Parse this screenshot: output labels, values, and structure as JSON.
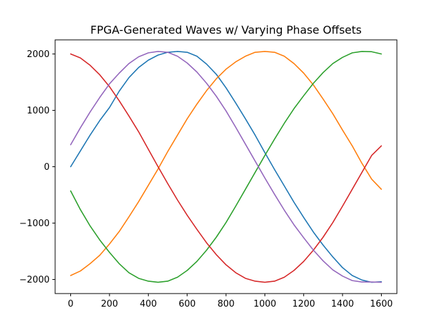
{
  "chart_data": {
    "type": "line",
    "title": "FPGA-Generated Waves w/ Varying Phase Offsets",
    "xlabel": "",
    "ylabel": "",
    "xlim": [
      -80,
      1680
    ],
    "ylim": [
      -2250,
      2250
    ],
    "xticks": [
      0,
      200,
      400,
      600,
      800,
      1000,
      1200,
      1400,
      1600
    ],
    "yticks": [
      -2000,
      -1000,
      0,
      1000,
      2000
    ],
    "xtick_labels": [
      "0",
      "200",
      "400",
      "600",
      "800",
      "1000",
      "1200",
      "1400",
      "1600"
    ],
    "ytick_labels": [
      "−2000",
      "−1000",
      "0",
      "1000",
      "2000"
    ],
    "grid": false,
    "legend": "none",
    "series": [
      {
        "color": "#1f77b4",
        "x": [
          0,
          50,
          100,
          150,
          200,
          250,
          300,
          350,
          400,
          450,
          500,
          550,
          600,
          650,
          700,
          750,
          800,
          850,
          900,
          950,
          1000,
          1050,
          1100,
          1150,
          1200,
          1250,
          1300,
          1350,
          1400,
          1450,
          1500,
          1550,
          1600
        ],
        "values": [
          0,
          280,
          560,
          820,
          1050,
          1340,
          1580,
          1760,
          1890,
          1980,
          2030,
          2045,
          2030,
          1960,
          1820,
          1640,
          1400,
          1130,
          850,
          560,
          250,
          -50,
          -340,
          -630,
          -900,
          -1160,
          -1390,
          -1600,
          -1790,
          -1930,
          -2010,
          -2050,
          -2040
        ]
      },
      {
        "color": "#ff7f0e",
        "x": [
          0,
          50,
          100,
          150,
          200,
          250,
          300,
          350,
          400,
          450,
          500,
          550,
          600,
          650,
          700,
          750,
          800,
          850,
          900,
          950,
          1000,
          1050,
          1100,
          1150,
          1200,
          1250,
          1300,
          1350,
          1400,
          1450,
          1500,
          1550,
          1600
        ],
        "values": [
          -1930,
          -1850,
          -1720,
          -1570,
          -1370,
          -1150,
          -890,
          -620,
          -330,
          -40,
          270,
          560,
          850,
          1110,
          1350,
          1560,
          1730,
          1860,
          1960,
          2030,
          2045,
          2030,
          1960,
          1830,
          1660,
          1450,
          1200,
          940,
          650,
          370,
          60,
          -220,
          -400
        ]
      },
      {
        "color": "#2ca02c",
        "x": [
          0,
          50,
          100,
          150,
          200,
          250,
          300,
          350,
          400,
          450,
          500,
          550,
          600,
          650,
          700,
          750,
          800,
          850,
          900,
          950,
          1000,
          1050,
          1100,
          1150,
          1200,
          1250,
          1300,
          1350,
          1400,
          1450,
          1500,
          1550,
          1600
        ],
        "values": [
          -430,
          -760,
          -1050,
          -1300,
          -1520,
          -1720,
          -1880,
          -1980,
          -2030,
          -2050,
          -2030,
          -1960,
          -1840,
          -1680,
          -1480,
          -1250,
          -990,
          -700,
          -400,
          -100,
          200,
          490,
          770,
          1030,
          1260,
          1480,
          1670,
          1830,
          1940,
          2020,
          2045,
          2040,
          2000
        ]
      },
      {
        "color": "#d62728",
        "x": [
          0,
          50,
          100,
          150,
          200,
          250,
          300,
          350,
          400,
          450,
          500,
          550,
          600,
          650,
          700,
          750,
          800,
          850,
          900,
          950,
          1000,
          1050,
          1100,
          1150,
          1200,
          1250,
          1300,
          1350,
          1400,
          1450,
          1500,
          1550,
          1600
        ],
        "values": [
          2000,
          1930,
          1800,
          1630,
          1420,
          1170,
          900,
          620,
          310,
          0,
          -300,
          -590,
          -860,
          -1110,
          -1350,
          -1560,
          -1740,
          -1880,
          -1980,
          -2030,
          -2050,
          -2030,
          -1960,
          -1840,
          -1680,
          -1480,
          -1250,
          -990,
          -700,
          -400,
          -100,
          200,
          370
        ]
      },
      {
        "color": "#9467bd",
        "x": [
          0,
          50,
          100,
          150,
          200,
          250,
          300,
          350,
          400,
          450,
          500,
          550,
          600,
          650,
          700,
          750,
          800,
          850,
          900,
          950,
          1000,
          1050,
          1100,
          1150,
          1200,
          1250,
          1300,
          1350,
          1400,
          1450,
          1500,
          1550,
          1600
        ],
        "values": [
          390,
          690,
          970,
          1230,
          1470,
          1660,
          1830,
          1950,
          2020,
          2045,
          2030,
          1960,
          1840,
          1680,
          1480,
          1250,
          990,
          700,
          400,
          100,
          -200,
          -490,
          -770,
          -1030,
          -1260,
          -1480,
          -1670,
          -1830,
          -1940,
          -2020,
          -2045,
          -2045,
          -2050
        ]
      }
    ]
  }
}
